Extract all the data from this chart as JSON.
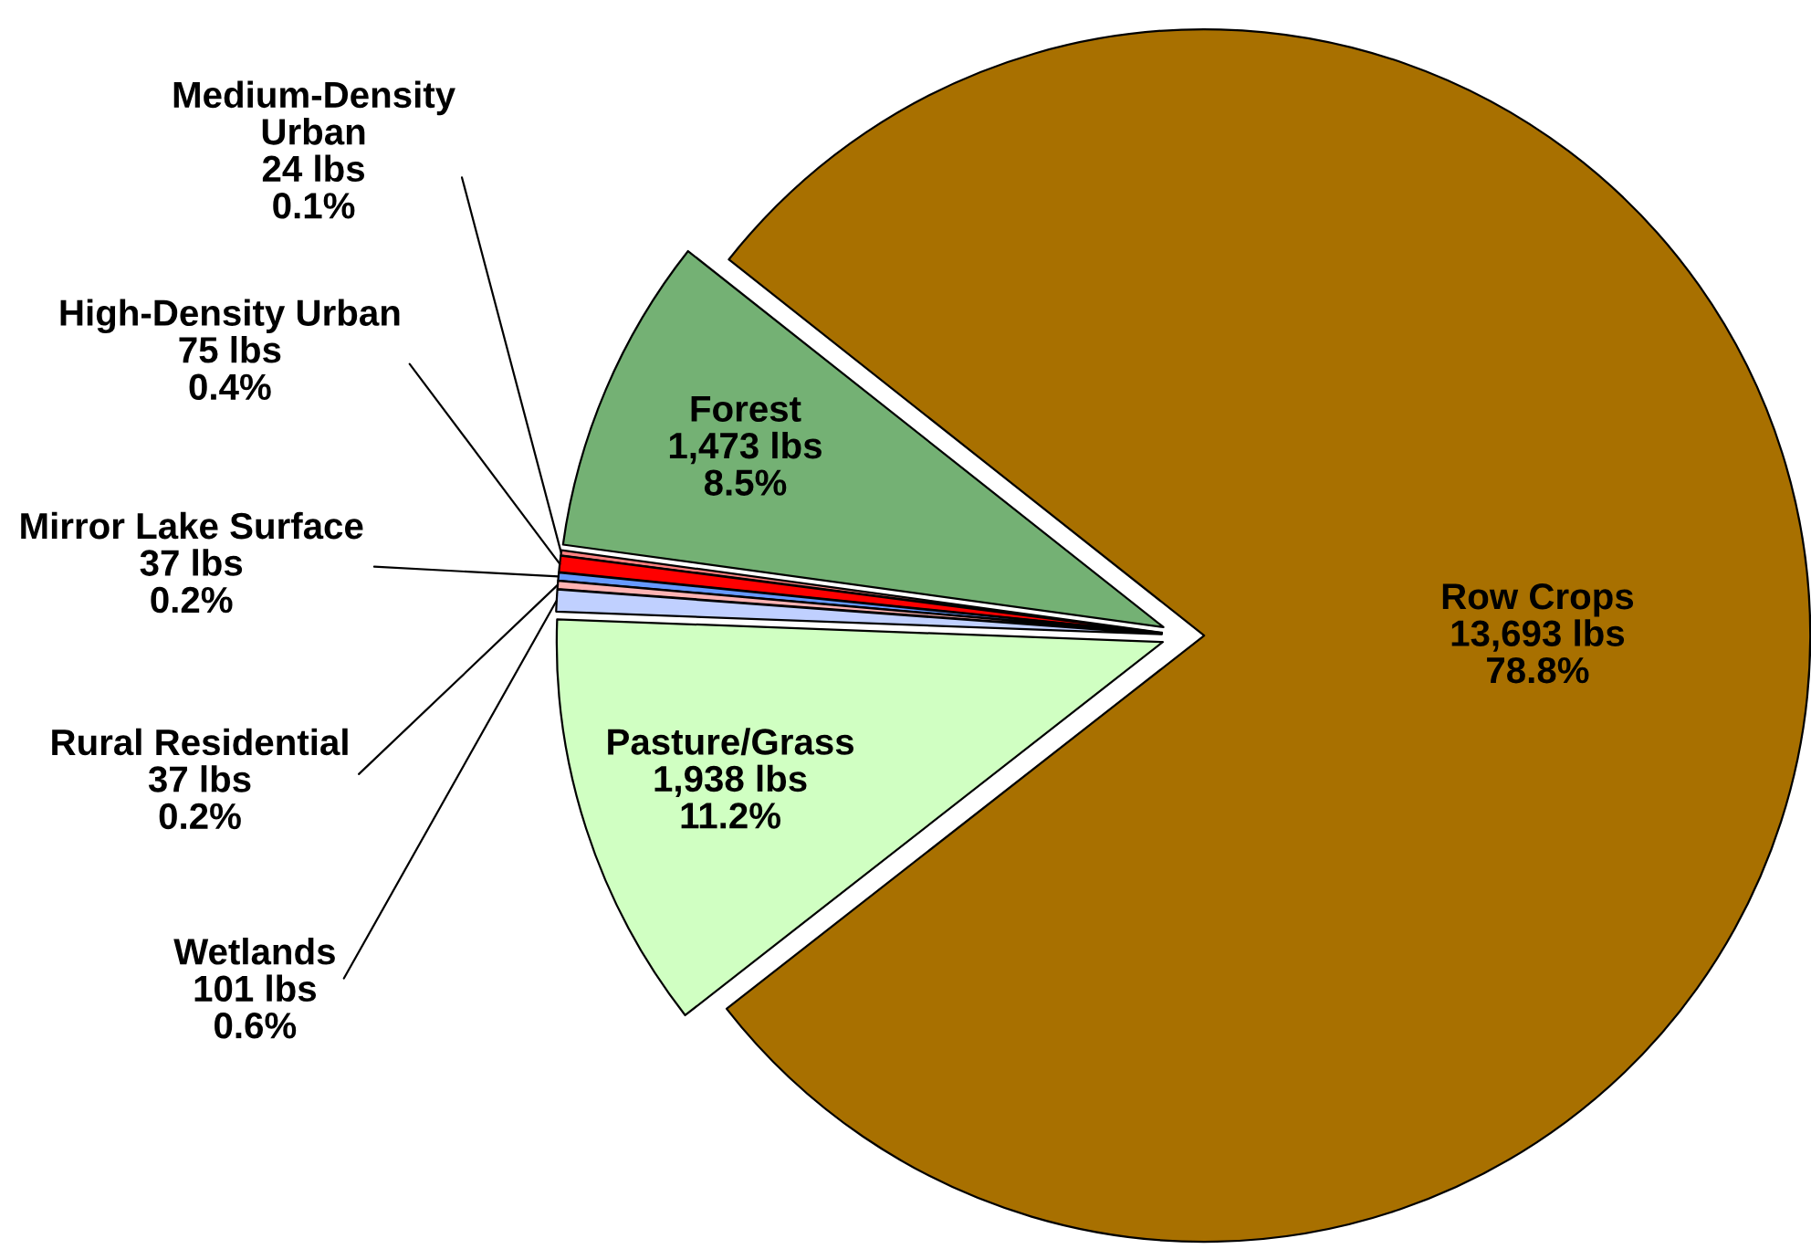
{
  "chart_data": {
    "type": "pie",
    "categories": [
      "Row Crops",
      "Forest",
      "Medium-Density\nUrban",
      "High-Density Urban",
      "Mirror Lake Surface",
      "Rural Residential",
      "Wetlands",
      "Pasture/Grass"
    ],
    "values": [
      13693,
      1473,
      24,
      75,
      37,
      37,
      101,
      1938
    ],
    "colors": [
      "#a87000",
      "#74b174",
      "#ff8080",
      "#ff0000",
      "#6699ff",
      "#ffb3b3",
      "#c0d0ff",
      "#d0ffc2"
    ],
    "value_labels": [
      "13,693 lbs\n78.8%",
      "1,473 lbs\n8.5%",
      "24 lbs\n0.1%",
      "75 lbs\n0.4%",
      "37 lbs\n0.2%",
      "37 lbs\n0.2%",
      "101 lbs\n0.6%",
      "1,938 lbs\n11.2%"
    ]
  }
}
